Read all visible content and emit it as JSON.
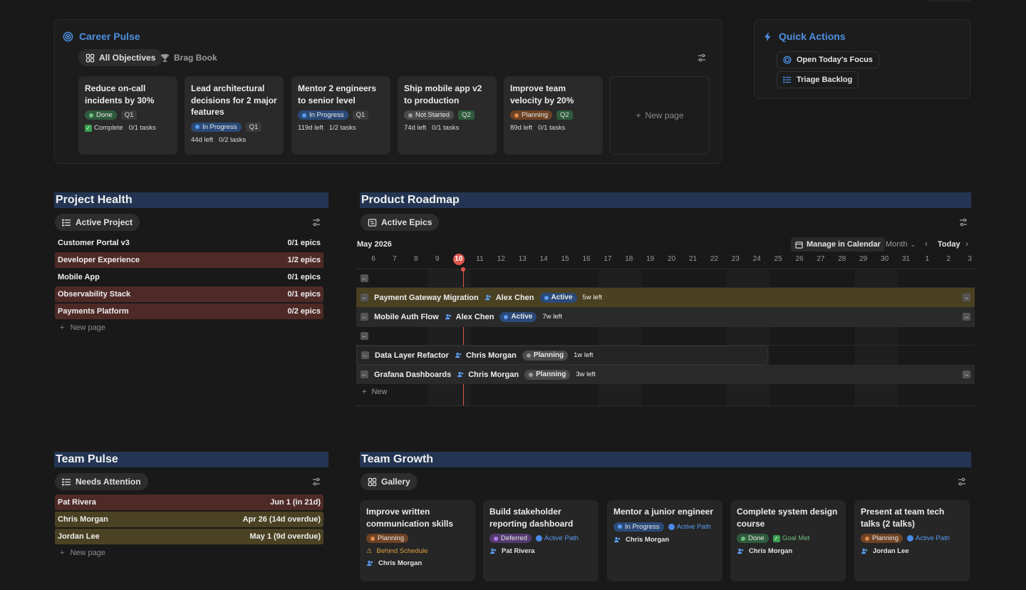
{
  "career_pulse": {
    "title": "Career Pulse",
    "views": [
      {
        "label": "All Objectives"
      },
      {
        "label": "Brag Book"
      }
    ],
    "cards": [
      {
        "title": "Reduce on-call incidents by 30%",
        "status": "Done",
        "quarter": "Q1",
        "left": "Complete",
        "tasks": "0/1 tasks"
      },
      {
        "title": "Lead architectural decisions for 2 major features",
        "status": "In Progress",
        "quarter": "Q1",
        "left": "44d left",
        "tasks": "0/2 tasks"
      },
      {
        "title": "Mentor 2 engineers to senior level",
        "status": "In Progress",
        "quarter": "Q1",
        "left": "119d left",
        "tasks": "1/2 tasks"
      },
      {
        "title": "Ship mobile app v2 to production",
        "status": "Not Started",
        "quarter": "Q2",
        "left": "74d left",
        "tasks": "0/1 tasks"
      },
      {
        "title": "Improve team velocity by 20%",
        "status": "Planning",
        "quarter": "Q2",
        "left": "89d left",
        "tasks": "0/1 tasks"
      }
    ],
    "new_page": "New page"
  },
  "quick_actions": {
    "title": "Quick Actions",
    "items": [
      {
        "label": "Open Today's Focus"
      },
      {
        "label": "Triage Backlog"
      }
    ]
  },
  "project_health": {
    "title": "Project Health",
    "view": "Active Project",
    "rows": [
      {
        "name": "Customer Portal v3",
        "epics": "0/1 epics"
      },
      {
        "name": "Developer Experience",
        "epics": "1/2 epics"
      },
      {
        "name": "Mobile App",
        "epics": "0/1 epics"
      },
      {
        "name": "Observability Stack",
        "epics": "0/1 epics"
      },
      {
        "name": "Payments Platform",
        "epics": "0/2 epics"
      }
    ],
    "new_page": "New page"
  },
  "roadmap": {
    "title": "Product Roadmap",
    "view": "Active Epics",
    "month": "May 2026",
    "manage": "Manage in Calendar",
    "scale": "Month",
    "today": "Today",
    "days": [
      "6",
      "7",
      "8",
      "9",
      "10",
      "11",
      "12",
      "13",
      "14",
      "15",
      "16",
      "17",
      "18",
      "19",
      "20",
      "21",
      "22",
      "23",
      "24",
      "25",
      "26",
      "27",
      "28",
      "29",
      "30",
      "31",
      "1",
      "2",
      "3"
    ],
    "rows": [
      {
        "name": "Payment Gateway Migration",
        "owner": "Alex Chen",
        "status": "Active",
        "left": "5w left"
      },
      {
        "name": "Mobile Auth Flow",
        "owner": "Alex Chen",
        "status": "Active",
        "left": "7w left"
      },
      {
        "name": "Data Layer Refactor",
        "owner": "Chris Morgan",
        "status": "Planning",
        "left": "1w left"
      },
      {
        "name": "Grafana Dashboards",
        "owner": "Chris Morgan",
        "status": "Planning",
        "left": "3w left"
      }
    ],
    "new": "New"
  },
  "team_pulse": {
    "title": "Team Pulse",
    "view": "Needs Attention",
    "rows": [
      {
        "name": "Pat Rivera",
        "date": "Jun 1 (in 21d)"
      },
      {
        "name": "Chris Morgan",
        "date": "Apr 26 (14d overdue)"
      },
      {
        "name": "Jordan Lee",
        "date": "May 1 (9d overdue)"
      }
    ],
    "new_page": "New page"
  },
  "team_growth": {
    "title": "Team Growth",
    "view": "Gallery",
    "cards": [
      {
        "title": "Improve written communication skills",
        "status": "Planning",
        "flag": "Behind Schedule",
        "person": "Chris Morgan"
      },
      {
        "title": "Build stakeholder reporting dashboard",
        "status": "Deferred",
        "flag": "Active Path",
        "person": "Pat Rivera"
      },
      {
        "title": "Mentor a junior engineer",
        "status": "In Progress",
        "flag": "Active Path",
        "person": "Chris Morgan"
      },
      {
        "title": "Complete system design course",
        "status": "Done",
        "flag": "Goal Met",
        "person": "Chris Morgan"
      },
      {
        "title": "Present at team tech talks (2 talks)",
        "status": "Planning",
        "flag": "Active Path",
        "person": "Jordan Lee"
      }
    ]
  },
  "colors": {
    "accent": "#4d8fe0",
    "section_header": "#233553",
    "red_row": "#4e2a26",
    "yellow_row": "#4b4123",
    "today_marker": "#e0554c"
  }
}
